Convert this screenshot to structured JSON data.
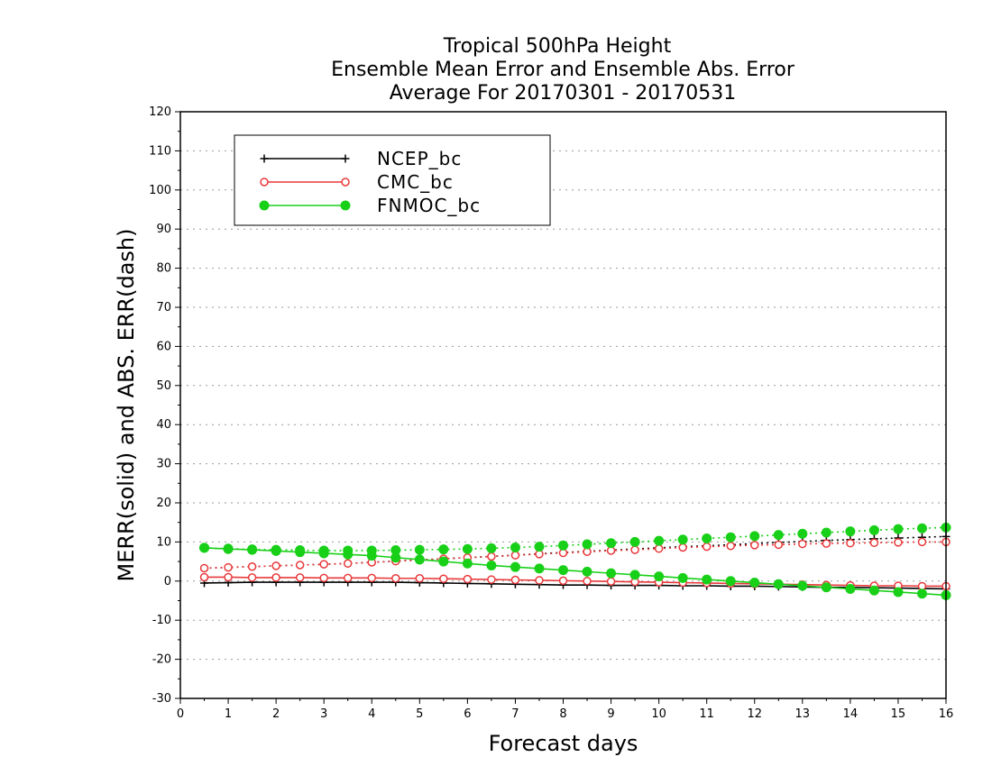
{
  "chart_data": {
    "type": "line",
    "title": [
      "Tropical 500hPa Height",
      "Ensemble Mean Error and Ensemble Abs. Error",
      "Average For 20170301 - 20170531"
    ],
    "xlabel": "Forecast days",
    "ylabel": "MERR(solid) and ABS. ERR(dash)",
    "xlim": [
      0,
      16
    ],
    "ylim": [
      -30,
      120
    ],
    "xticks": [
      "0",
      "1",
      "2",
      "3",
      "4",
      "5",
      "6",
      "7",
      "8",
      "9",
      "10",
      "11",
      "12",
      "13",
      "14",
      "15",
      "16"
    ],
    "yticks": [
      "-30",
      "-20",
      "-10",
      "0",
      "10",
      "20",
      "30",
      "40",
      "50",
      "60",
      "70",
      "80",
      "90",
      "100",
      "110",
      "120"
    ],
    "grid": true,
    "legend_position": "top-left",
    "x": [
      0.5,
      1,
      1.5,
      2,
      2.5,
      3,
      3.5,
      4,
      4.5,
      5,
      5.5,
      6,
      6.5,
      7,
      7.5,
      8,
      8.5,
      9,
      9.5,
      10,
      10.5,
      11,
      11.5,
      12,
      12.5,
      13,
      13.5,
      14,
      14.5,
      15,
      15.5,
      16
    ],
    "series": [
      {
        "name": "NCEP_bc",
        "color": "#000000",
        "marker": "plus",
        "merr": [
          -0.5,
          -0.4,
          -0.3,
          -0.3,
          -0.3,
          -0.3,
          -0.3,
          -0.3,
          -0.3,
          -0.4,
          -0.5,
          -0.6,
          -0.7,
          -0.8,
          -0.9,
          -1.0,
          -1.0,
          -1.1,
          -1.1,
          -1.1,
          -1.2,
          -1.2,
          -1.3,
          -1.3,
          -1.4,
          -1.5,
          -1.6,
          -1.6,
          -1.7,
          -1.8,
          -1.9,
          -2.0
        ],
        "abs_err": [
          3.3,
          3.5,
          3.7,
          3.9,
          4.1,
          4.3,
          4.5,
          4.8,
          5.1,
          5.4,
          5.7,
          6.0,
          6.3,
          6.6,
          7.0,
          7.3,
          7.6,
          7.9,
          8.2,
          8.5,
          8.8,
          9.0,
          9.3,
          9.6,
          9.9,
          10.1,
          10.4,
          10.6,
          10.8,
          11.0,
          11.2,
          11.4
        ]
      },
      {
        "name": "CMC_bc",
        "color": "#e8393b",
        "marker": "open-circle",
        "merr": [
          1.0,
          1.0,
          0.9,
          0.9,
          0.9,
          0.8,
          0.8,
          0.8,
          0.7,
          0.7,
          0.6,
          0.5,
          0.4,
          0.3,
          0.2,
          0.1,
          0.0,
          -0.1,
          -0.2,
          -0.3,
          -0.4,
          -0.5,
          -0.6,
          -0.7,
          -0.8,
          -0.9,
          -1.0,
          -1.1,
          -1.2,
          -1.2,
          -1.3,
          -1.3
        ],
        "abs_err": [
          3.3,
          3.5,
          3.7,
          3.9,
          4.1,
          4.3,
          4.5,
          4.8,
          5.1,
          5.4,
          5.7,
          6.0,
          6.3,
          6.6,
          6.9,
          7.2,
          7.5,
          7.8,
          8.0,
          8.3,
          8.6,
          8.8,
          9.0,
          9.2,
          9.3,
          9.5,
          9.6,
          9.7,
          9.8,
          9.9,
          10.0,
          10.0
        ]
      },
      {
        "name": "FNMOC_bc",
        "color": "#18d018",
        "marker": "filled-circle",
        "merr": [
          8.5,
          8.2,
          8.0,
          7.7,
          7.4,
          7.1,
          6.8,
          6.5,
          6.0,
          5.5,
          5.0,
          4.5,
          4.0,
          3.6,
          3.2,
          2.8,
          2.4,
          2.0,
          1.6,
          1.2,
          0.8,
          0.4,
          0.0,
          -0.4,
          -0.8,
          -1.2,
          -1.6,
          -2.0,
          -2.4,
          -2.8,
          -3.2,
          -3.6
        ],
        "abs_err": [
          8.5,
          8.3,
          8.1,
          8.0,
          7.9,
          7.8,
          7.8,
          7.8,
          7.9,
          8.0,
          8.1,
          8.2,
          8.4,
          8.6,
          8.8,
          9.1,
          9.4,
          9.7,
          10.0,
          10.3,
          10.6,
          10.9,
          11.2,
          11.5,
          11.8,
          12.1,
          12.4,
          12.7,
          13.0,
          13.3,
          13.5,
          13.7
        ]
      }
    ]
  }
}
